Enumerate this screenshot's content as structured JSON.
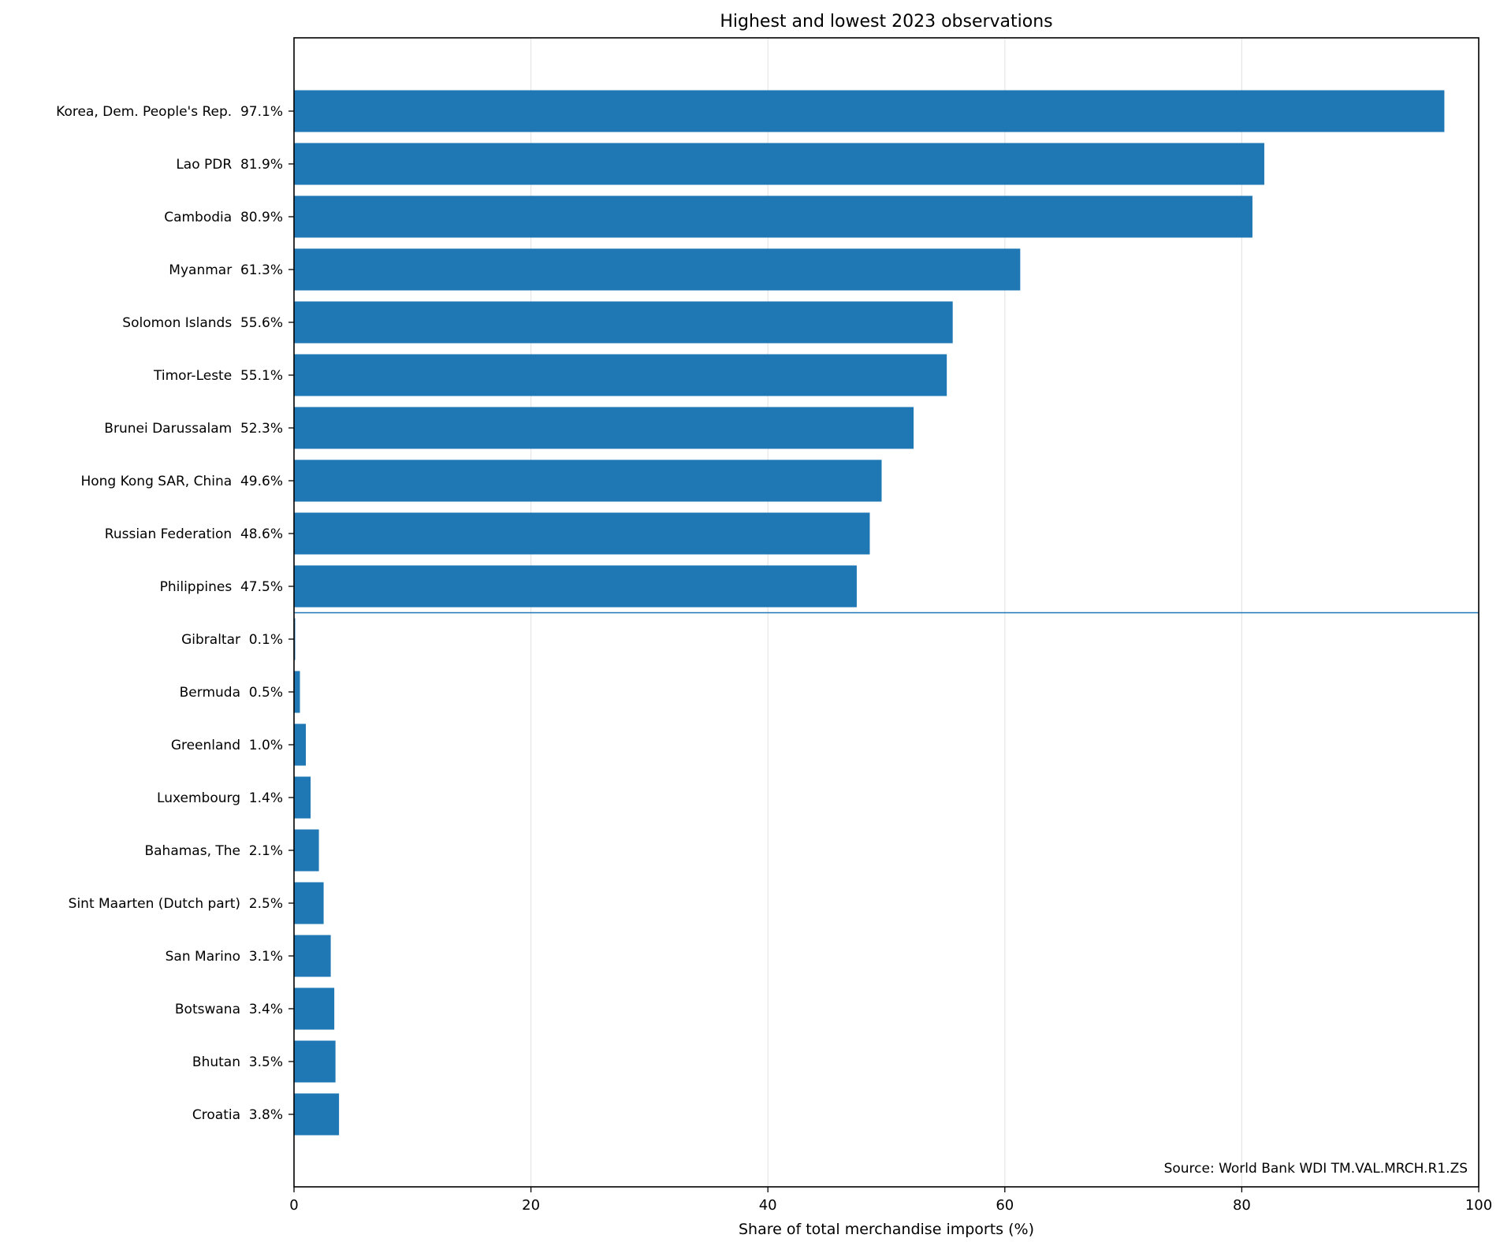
{
  "chart_data": {
    "type": "bar",
    "orientation": "horizontal",
    "title": "Highest and lowest 2023 observations",
    "xlabel": "Share of total merchandise imports (%)",
    "ylabel": "",
    "xlim": [
      0,
      100
    ],
    "xticks": [
      0,
      20,
      40,
      60,
      80,
      100
    ],
    "grid": "vertical gridlines",
    "bar_color": "#1f77b4",
    "separator_color": "#1f77b4",
    "note": "Source: World Bank WDI TM.VAL.MRCH.R1.ZS",
    "categories": [
      "Korea, Dem. People's Rep.  97.1%",
      "Lao PDR  81.9%",
      "Cambodia  80.9%",
      "Myanmar  61.3%",
      "Solomon Islands  55.6%",
      "Timor-Leste  55.1%",
      "Brunei Darussalam  52.3%",
      "Hong Kong SAR, China  49.6%",
      "Russian Federation  48.6%",
      "Philippines  47.5%",
      "Gibraltar  0.1%",
      "Bermuda  0.5%",
      "Greenland  1.0%",
      "Luxembourg  1.4%",
      "Bahamas, The  2.1%",
      "Sint Maarten (Dutch part)  2.5%",
      "San Marino  3.1%",
      "Botswana  3.4%",
      "Bhutan  3.5%",
      "Croatia  3.8%"
    ],
    "values": [
      97.1,
      81.9,
      80.9,
      61.3,
      55.6,
      55.1,
      52.3,
      49.6,
      48.6,
      47.5,
      0.1,
      0.5,
      1.0,
      1.4,
      2.1,
      2.5,
      3.1,
      3.4,
      3.5,
      3.8
    ],
    "groups": [
      "highest",
      "highest",
      "highest",
      "highest",
      "highest",
      "highest",
      "highest",
      "highest",
      "highest",
      "highest",
      "lowest",
      "lowest",
      "lowest",
      "lowest",
      "lowest",
      "lowest",
      "lowest",
      "lowest",
      "lowest",
      "lowest"
    ]
  }
}
